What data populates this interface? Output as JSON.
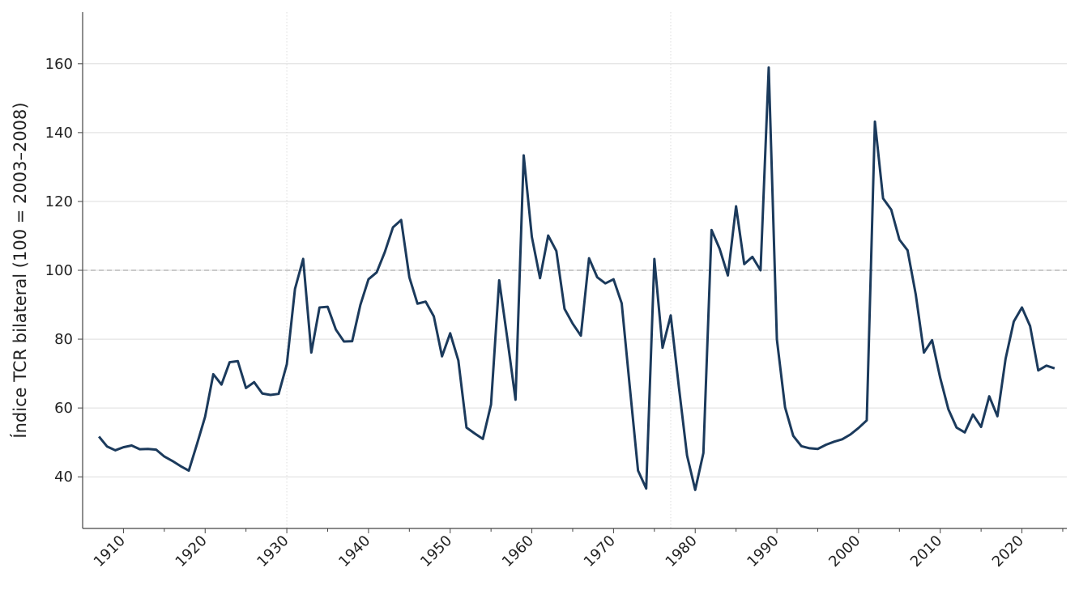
{
  "chart_data": {
    "type": "line",
    "title": "",
    "xlabel": "",
    "ylabel": "Índice TCR bilateral (100 = 2003–2008)",
    "xlim": [
      1905,
      2025.5
    ],
    "ylim": [
      25,
      175
    ],
    "xticks": [
      1910,
      1920,
      1930,
      1940,
      1950,
      1960,
      1970,
      1980,
      1990,
      2000,
      2010,
      2020
    ],
    "xtick_labels": [
      "1910",
      "1920",
      "1930",
      "1940",
      "1950",
      "1960",
      "1970",
      "1980",
      "1990",
      "2000",
      "2010",
      "2020"
    ],
    "yticks": [
      40,
      60,
      80,
      100,
      120,
      140,
      160
    ],
    "ytick_labels": [
      "40",
      "60",
      "80",
      "100",
      "120",
      "140",
      "160"
    ],
    "grid": "horizontal",
    "reference_line": 100,
    "vertical_markers": [
      1930,
      1977
    ],
    "colors": {
      "line": "#1b3a5c",
      "reference": "#aaaaaa",
      "grid": "#dddddd",
      "axis": "#444444"
    },
    "series": [
      {
        "x": [
          1907,
          1908,
          1909,
          1910,
          1911,
          1912,
          1913,
          1914,
          1915,
          1916,
          1917,
          1918,
          1919,
          1920,
          1921,
          1922,
          1923,
          1924,
          1925,
          1926,
          1927,
          1928,
          1929,
          1930,
          1931,
          1932,
          1933,
          1934,
          1935,
          1936,
          1937,
          1938,
          1939,
          1940,
          1941,
          1942,
          1943,
          1944,
          1945,
          1946,
          1947,
          1948,
          1949,
          1950,
          1951,
          1952,
          1953,
          1954,
          1955,
          1956,
          1957,
          1958,
          1959,
          1960,
          1961,
          1962,
          1963,
          1964,
          1965,
          1966,
          1967,
          1968,
          1969,
          1970,
          1971,
          1972,
          1973,
          1974,
          1975,
          1976,
          1977,
          1978,
          1979,
          1980,
          1981,
          1982,
          1983,
          1984,
          1985,
          1986,
          1987,
          1988,
          1989,
          1990,
          1991,
          1992,
          1993,
          1994,
          1995,
          1996,
          1997,
          1998,
          1999,
          2000,
          2001,
          2002,
          2003,
          2004,
          2005,
          2006,
          2007,
          2008,
          2009,
          2010,
          2011,
          2012,
          2013,
          2014,
          2015,
          2016,
          2017,
          2018,
          2019,
          2020,
          2021,
          2022,
          2023,
          2024
        ],
        "values": [
          51.7,
          48.8,
          47.7,
          48.6,
          49.1,
          48,
          48.1,
          47.9,
          45.9,
          44.6,
          43.1,
          41.8,
          49.5,
          57.5,
          69.8,
          66.8,
          73.3,
          73.6,
          65.8,
          67.5,
          64.2,
          63.8,
          64.1,
          72.7,
          94.6,
          103.3,
          76.1,
          89.2,
          89.4,
          82.8,
          79.3,
          79.4,
          89.9,
          97.4,
          99.4,
          105.3,
          112.5,
          114.6,
          98,
          90.3,
          90.9,
          86.6,
          75,
          81.7,
          73.8,
          54.3,
          52.6,
          51,
          61,
          97.1,
          80.1,
          62.4,
          133.4,
          109.7,
          97.7,
          110.1,
          105.6,
          88.8,
          84.5,
          81,
          103.5,
          98,
          96.2,
          97.4,
          90.4,
          65.9,
          41.8,
          36.6,
          103.3,
          77.5,
          86.9,
          66.1,
          46.2,
          36.2,
          46.9,
          111.7,
          106.2,
          98.5,
          118.6,
          101.8,
          103.9,
          100,
          158.9,
          79.9,
          60.2,
          51.9,
          48.9,
          48.3,
          48.1,
          49.3,
          50.2,
          50.9,
          52.3,
          54.2,
          56.4,
          143.2,
          120.9,
          117.6,
          108.9,
          105.8,
          93,
          76.1,
          79.7,
          68.7,
          59.6,
          54.3,
          52.9,
          58.1,
          54.5,
          63.4,
          57.6,
          74.3,
          85.1,
          89.2,
          83.8,
          70.9,
          72.3,
          71.5
        ]
      }
    ]
  }
}
